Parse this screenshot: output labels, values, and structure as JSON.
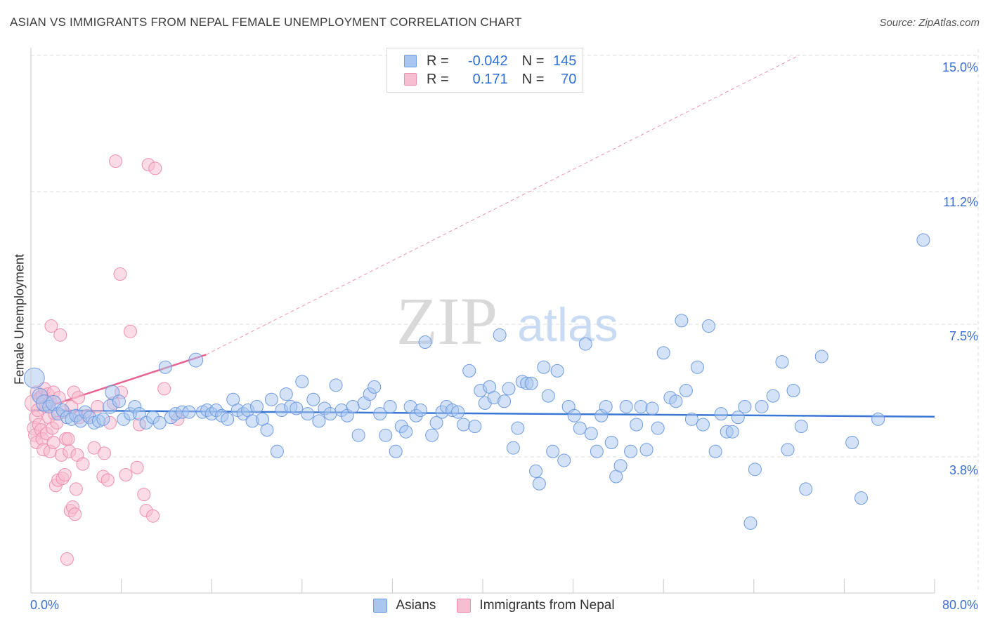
{
  "header": {
    "title": "ASIAN VS IMMIGRANTS FROM NEPAL FEMALE UNEMPLOYMENT CORRELATION CHART",
    "source": "Source: ZipAtlas.com"
  },
  "watermark": {
    "zip": "ZIP",
    "atlas": "atlas"
  },
  "legend": {
    "asians": {
      "r_label": "R =",
      "r_value": "-0.042",
      "n_label": "N =",
      "n_value": "145"
    },
    "nepal": {
      "r_label": "R =",
      "r_value": "0.171",
      "n_label": "N =",
      "n_value": "70"
    }
  },
  "bottom_legend": {
    "asians": "Asians",
    "nepal": "Immigrants from Nepal"
  },
  "colors": {
    "blue_fill": "#a8c6f0",
    "blue_stroke": "#6f9be0",
    "blue_line": "#3b78d4",
    "pink_fill": "#f7bdd0",
    "pink_stroke": "#ee8fb0",
    "pink_line": "#e8648f",
    "grid": "#dedede",
    "axis_text": "#3a6fd0"
  },
  "chart_data": {
    "type": "scatter",
    "title": "ASIAN VS IMMIGRANTS FROM NEPAL FEMALE UNEMPLOYMENT CORRELATION CHART",
    "xlabel": "",
    "ylabel": "Female Unemployment",
    "xlim": [
      0,
      80
    ],
    "ylim": [
      0,
      15.5
    ],
    "x_tick_labels": [
      "0.0%",
      "80.0%"
    ],
    "y_ticks": [
      3.8,
      7.5,
      11.2,
      15.0
    ],
    "y_tick_labels": [
      "3.8%",
      "7.5%",
      "11.2%",
      "15.0%"
    ],
    "grid": true,
    "series": [
      {
        "name": "Asians",
        "color": "#a8c6f0",
        "trend": {
          "x": [
            0,
            80
          ],
          "y": [
            5.1,
            4.92
          ],
          "dashed_extension": false
        },
        "points": [
          [
            0.3,
            6.0,
            1.6
          ],
          [
            0.8,
            5.5,
            1.2
          ],
          [
            1.2,
            5.3,
            1.3
          ],
          [
            1.6,
            5.2,
            1.0
          ],
          [
            2.0,
            5.3,
            1.2
          ],
          [
            2.4,
            5.0,
            1.0
          ],
          [
            2.8,
            5.1,
            1.0
          ],
          [
            3.2,
            4.9,
            1.0
          ],
          [
            3.6,
            4.85,
            1.0
          ],
          [
            4.0,
            4.95,
            1.0
          ],
          [
            4.4,
            4.8,
            1.0
          ],
          [
            4.8,
            5.05,
            1.0
          ],
          [
            5.2,
            4.9,
            1.0
          ],
          [
            5.6,
            4.75,
            1.0
          ],
          [
            6.0,
            4.8,
            1.0
          ],
          [
            6.4,
            4.85,
            1.0
          ],
          [
            7.0,
            5.2,
            1.1
          ],
          [
            7.2,
            5.6,
            1.1
          ],
          [
            7.8,
            5.35,
            1.0
          ],
          [
            8.2,
            4.85,
            1.0
          ],
          [
            8.8,
            5.0,
            1.0
          ],
          [
            9.2,
            5.2,
            1.0
          ],
          [
            9.6,
            5.0,
            1.0
          ],
          [
            10.2,
            4.75,
            1.0
          ],
          [
            10.8,
            4.9,
            1.0
          ],
          [
            11.4,
            4.75,
            1.0
          ],
          [
            11.9,
            6.3,
            1.0
          ],
          [
            12.4,
            4.9,
            1.0
          ],
          [
            12.8,
            5.0,
            1.0
          ],
          [
            13.4,
            5.05,
            1.0
          ],
          [
            14.0,
            5.05,
            1.0
          ],
          [
            14.6,
            6.5,
            1.1
          ],
          [
            15.2,
            5.05,
            1.0
          ],
          [
            15.6,
            5.1,
            1.0
          ],
          [
            16.0,
            5.0,
            1.0
          ],
          [
            16.4,
            5.1,
            1.0
          ],
          [
            16.9,
            4.95,
            1.0
          ],
          [
            17.4,
            4.85,
            1.0
          ],
          [
            17.9,
            5.4,
            1.0
          ],
          [
            18.3,
            5.1,
            1.0
          ],
          [
            18.8,
            5.0,
            1.0
          ],
          [
            19.2,
            5.1,
            1.0
          ],
          [
            19.6,
            4.8,
            1.0
          ],
          [
            20.0,
            5.2,
            1.0
          ],
          [
            20.5,
            4.85,
            1.0
          ],
          [
            20.9,
            4.55,
            1.0
          ],
          [
            21.3,
            5.4,
            1.0
          ],
          [
            21.8,
            3.95,
            1.0
          ],
          [
            22.2,
            5.1,
            1.0
          ],
          [
            22.6,
            5.55,
            1.0
          ],
          [
            23.0,
            5.2,
            1.0
          ],
          [
            23.5,
            5.15,
            1.0
          ],
          [
            24.0,
            5.9,
            1.0
          ],
          [
            24.5,
            5.0,
            1.0
          ],
          [
            25.0,
            5.4,
            1.0
          ],
          [
            25.5,
            4.8,
            1.0
          ],
          [
            26.0,
            5.15,
            1.0
          ],
          [
            26.5,
            5.0,
            1.0
          ],
          [
            27.0,
            5.8,
            1.0
          ],
          [
            27.5,
            5.1,
            1.0
          ],
          [
            28.0,
            4.95,
            1.0
          ],
          [
            28.5,
            5.2,
            1.0
          ],
          [
            29.0,
            4.4,
            1.0
          ],
          [
            29.5,
            5.3,
            1.0
          ],
          [
            30.0,
            5.55,
            1.0
          ],
          [
            30.4,
            5.75,
            1.0
          ],
          [
            30.9,
            5.0,
            1.0
          ],
          [
            31.4,
            4.4,
            1.0
          ],
          [
            31.8,
            5.2,
            1.0
          ],
          [
            32.3,
            3.95,
            1.0
          ],
          [
            32.8,
            4.65,
            1.0
          ],
          [
            33.2,
            4.5,
            1.0
          ],
          [
            33.6,
            5.2,
            1.0
          ],
          [
            34.1,
            4.95,
            1.0
          ],
          [
            34.5,
            5.1,
            1.0
          ],
          [
            34.9,
            7.0,
            1.0
          ],
          [
            35.5,
            4.4,
            1.0
          ],
          [
            35.9,
            4.75,
            1.0
          ],
          [
            36.4,
            5.05,
            1.0
          ],
          [
            36.8,
            5.2,
            1.0
          ],
          [
            37.3,
            5.1,
            1.0
          ],
          [
            37.8,
            5.05,
            1.0
          ],
          [
            38.3,
            4.7,
            1.0
          ],
          [
            38.8,
            6.2,
            1.0
          ],
          [
            39.3,
            4.65,
            1.0
          ],
          [
            39.8,
            5.65,
            1.0
          ],
          [
            40.2,
            5.3,
            1.0
          ],
          [
            40.6,
            5.75,
            1.0
          ],
          [
            41.0,
            5.45,
            1.0
          ],
          [
            41.5,
            7.2,
            1.0
          ],
          [
            41.9,
            5.35,
            1.0
          ],
          [
            42.3,
            5.7,
            1.0
          ],
          [
            42.7,
            4.05,
            1.0
          ],
          [
            43.1,
            4.6,
            1.0
          ],
          [
            43.5,
            5.9,
            1.0
          ],
          [
            43.9,
            5.85,
            1.0
          ],
          [
            44.3,
            5.85,
            1.0
          ],
          [
            44.7,
            3.4,
            1.0
          ],
          [
            45.0,
            3.05,
            1.0
          ],
          [
            45.4,
            6.3,
            1.0
          ],
          [
            45.8,
            5.5,
            1.0
          ],
          [
            46.2,
            3.95,
            1.0
          ],
          [
            46.6,
            6.2,
            1.0
          ],
          [
            47.2,
            3.7,
            1.0
          ],
          [
            47.6,
            5.2,
            1.0
          ],
          [
            48.1,
            4.95,
            1.0
          ],
          [
            48.6,
            4.6,
            1.0
          ],
          [
            49.1,
            6.95,
            1.0
          ],
          [
            49.6,
            4.45,
            1.0
          ],
          [
            50.1,
            3.95,
            1.0
          ],
          [
            50.5,
            4.95,
            1.0
          ],
          [
            50.9,
            5.2,
            1.0
          ],
          [
            51.4,
            4.2,
            1.0
          ],
          [
            51.8,
            3.25,
            1.0
          ],
          [
            52.2,
            3.55,
            1.0
          ],
          [
            52.7,
            5.2,
            1.0
          ],
          [
            53.1,
            3.95,
            1.0
          ],
          [
            53.6,
            4.7,
            1.0
          ],
          [
            54.0,
            5.2,
            1.0
          ],
          [
            54.5,
            4.0,
            1.0
          ],
          [
            55.0,
            5.15,
            1.0
          ],
          [
            55.5,
            4.6,
            1.0
          ],
          [
            56.0,
            6.7,
            1.0
          ],
          [
            56.6,
            5.45,
            1.0
          ],
          [
            57.1,
            5.35,
            1.0
          ],
          [
            57.6,
            7.6,
            1.0
          ],
          [
            58.0,
            5.65,
            1.0
          ],
          [
            58.5,
            4.85,
            1.0
          ],
          [
            59.0,
            6.3,
            1.0
          ],
          [
            59.5,
            4.7,
            1.0
          ],
          [
            60.0,
            7.45,
            1.0
          ],
          [
            60.6,
            3.95,
            1.0
          ],
          [
            61.1,
            5.0,
            1.0
          ],
          [
            61.6,
            4.5,
            1.0
          ],
          [
            62.1,
            4.5,
            1.0
          ],
          [
            62.6,
            4.9,
            1.0
          ],
          [
            63.2,
            5.2,
            1.0
          ],
          [
            63.7,
            1.95,
            1.0
          ],
          [
            64.1,
            3.45,
            1.0
          ],
          [
            64.7,
            5.2,
            1.0
          ],
          [
            65.7,
            5.5,
            1.0
          ],
          [
            66.5,
            6.45,
            1.0
          ],
          [
            67.0,
            4.0,
            1.0
          ],
          [
            67.5,
            5.65,
            1.0
          ],
          [
            68.2,
            4.65,
            1.0
          ],
          [
            68.6,
            2.9,
            1.0
          ],
          [
            70.0,
            6.6,
            1.0
          ],
          [
            72.7,
            4.2,
            1.0
          ],
          [
            73.5,
            2.65,
            1.0
          ],
          [
            75.0,
            4.85,
            1.0
          ],
          [
            79.0,
            9.85,
            1.0
          ]
        ]
      },
      {
        "name": "Immigrants from Nepal",
        "color": "#f7bdd0",
        "trend": {
          "x": [
            0,
            15.5
          ],
          "y": [
            5.05,
            6.65
          ],
          "dashed_extension": {
            "x": [
              15.5,
              68.0
            ],
            "y": [
              6.65,
              15.0
            ]
          }
        },
        "points": [
          [
            0.2,
            5.3,
            1.3
          ],
          [
            0.3,
            4.6,
            1.1
          ],
          [
            0.35,
            4.4,
            1.0
          ],
          [
            0.4,
            4.9,
            1.0
          ],
          [
            0.5,
            5.6,
            1.0
          ],
          [
            0.5,
            4.2,
            1.0
          ],
          [
            0.6,
            5.1,
            1.0
          ],
          [
            0.7,
            4.7,
            1.0
          ],
          [
            0.8,
            5.45,
            1.0
          ],
          [
            0.9,
            4.55,
            1.0
          ],
          [
            1.0,
            5.5,
            1.0
          ],
          [
            1.0,
            4.3,
            1.0
          ],
          [
            1.1,
            4.0,
            1.0
          ],
          [
            1.2,
            5.7,
            1.0
          ],
          [
            1.3,
            5.2,
            1.0
          ],
          [
            1.4,
            4.45,
            1.0
          ],
          [
            1.5,
            5.55,
            1.0
          ],
          [
            1.6,
            4.9,
            1.0
          ],
          [
            1.7,
            5.35,
            1.0
          ],
          [
            1.7,
            3.95,
            1.0
          ],
          [
            1.8,
            7.45,
            1.0
          ],
          [
            1.9,
            4.6,
            1.0
          ],
          [
            2.0,
            5.6,
            1.0
          ],
          [
            2.0,
            4.2,
            1.0
          ],
          [
            2.1,
            5.0,
            1.0
          ],
          [
            2.2,
            3.0,
            1.0
          ],
          [
            2.3,
            4.75,
            1.0
          ],
          [
            2.4,
            3.15,
            1.0
          ],
          [
            2.5,
            5.45,
            1.0
          ],
          [
            2.6,
            7.2,
            1.0
          ],
          [
            2.7,
            3.85,
            1.0
          ],
          [
            2.8,
            3.2,
            1.0
          ],
          [
            2.9,
            5.05,
            1.0
          ],
          [
            3.0,
            3.3,
            1.0
          ],
          [
            3.1,
            4.3,
            1.0
          ],
          [
            3.2,
            0.95,
            1.0
          ],
          [
            3.3,
            4.3,
            1.0
          ],
          [
            3.4,
            3.95,
            1.0
          ],
          [
            3.5,
            2.3,
            1.0
          ],
          [
            3.6,
            5.2,
            1.0
          ],
          [
            3.7,
            2.4,
            1.0
          ],
          [
            3.8,
            5.6,
            1.0
          ],
          [
            3.9,
            2.2,
            1.0
          ],
          [
            4.0,
            2.9,
            1.0
          ],
          [
            4.1,
            3.85,
            1.0
          ],
          [
            4.2,
            5.45,
            1.0
          ],
          [
            4.3,
            4.9,
            1.0
          ],
          [
            4.6,
            3.6,
            1.0
          ],
          [
            5.0,
            4.95,
            1.0
          ],
          [
            5.6,
            4.05,
            1.0
          ],
          [
            5.9,
            5.2,
            1.0
          ],
          [
            6.4,
            3.25,
            1.0
          ],
          [
            6.5,
            3.9,
            1.0
          ],
          [
            6.8,
            3.15,
            1.0
          ],
          [
            7.0,
            4.75,
            1.0
          ],
          [
            7.3,
            5.3,
            1.0
          ],
          [
            7.5,
            12.05,
            1.0
          ],
          [
            7.9,
            8.9,
            1.0
          ],
          [
            8.0,
            5.6,
            1.0
          ],
          [
            8.4,
            3.3,
            1.0
          ],
          [
            8.8,
            7.3,
            1.0
          ],
          [
            9.4,
            3.5,
            1.0
          ],
          [
            9.6,
            4.7,
            1.0
          ],
          [
            10.0,
            2.75,
            1.0
          ],
          [
            10.2,
            2.3,
            1.0
          ],
          [
            10.4,
            11.95,
            1.0
          ],
          [
            10.8,
            2.15,
            1.0
          ],
          [
            11.0,
            11.85,
            1.0
          ],
          [
            11.8,
            5.7,
            1.0
          ],
          [
            13.0,
            4.85,
            1.0
          ]
        ]
      }
    ]
  }
}
